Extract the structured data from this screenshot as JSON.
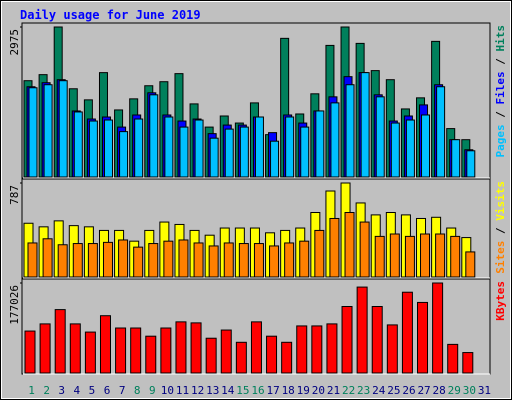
{
  "chart_data": [
    {
      "type": "bar",
      "title": "Daily usage for June 2019",
      "ylim": [
        0,
        2975
      ],
      "yticks": [
        2975
      ],
      "legend_separator": " / ",
      "series": [
        {
          "name": "Hits",
          "color": "#00805c",
          "values": [
            1910,
            2030,
            2975,
            1750,
            1530,
            2070,
            1330,
            1550,
            1810,
            1890,
            2050,
            1450,
            990,
            1210,
            1070,
            1470,
            840,
            2750,
            1250,
            1650,
            2610,
            2975,
            2650,
            2110,
            1930,
            1350,
            1570,
            2690,
            960,
            740,
            0
          ]
        },
        {
          "name": "Files",
          "color": "#0000ff",
          "values": [
            1790,
            1870,
            1930,
            1310,
            1150,
            1190,
            990,
            1230,
            1670,
            1230,
            1110,
            1150,
            860,
            1030,
            1030,
            1190,
            880,
            1230,
            1070,
            1310,
            1590,
            1990,
            2070,
            1630,
            1110,
            1210,
            1430,
            1830,
            740,
            540,
            0
          ]
        },
        {
          "name": "Pages",
          "color": "#00c0ff",
          "values": [
            1770,
            1830,
            1910,
            1290,
            1110,
            1130,
            900,
            1150,
            1630,
            1190,
            990,
            1130,
            770,
            950,
            990,
            1190,
            710,
            1190,
            990,
            1310,
            1470,
            1830,
            2070,
            1590,
            1070,
            1130,
            1230,
            1790,
            740,
            520,
            0
          ]
        }
      ]
    },
    {
      "type": "bar",
      "ylim": [
        0,
        787
      ],
      "yticks": [
        787
      ],
      "legend_separator": " / ",
      "series": [
        {
          "name": "Visits",
          "color": "#ffff00",
          "values": [
            450,
            420,
            470,
            430,
            420,
            390,
            390,
            300,
            390,
            460,
            440,
            390,
            350,
            410,
            410,
            410,
            370,
            390,
            410,
            540,
            720,
            787,
            620,
            520,
            540,
            520,
            490,
            500,
            410,
            330,
            0
          ]
        },
        {
          "name": "Sites",
          "color": "#ff8000",
          "values": [
            285,
            320,
            270,
            280,
            280,
            290,
            310,
            250,
            280,
            300,
            310,
            285,
            260,
            285,
            280,
            280,
            260,
            285,
            300,
            390,
            490,
            540,
            460,
            340,
            360,
            340,
            360,
            360,
            340,
            210,
            0
          ]
        }
      ]
    },
    {
      "type": "bar",
      "ylim": [
        0,
        177026
      ],
      "yticks": [
        177026
      ],
      "categories": [
        "1",
        "2",
        "3",
        "4",
        "5",
        "6",
        "7",
        "8",
        "9",
        "10",
        "11",
        "12",
        "13",
        "14",
        "15",
        "16",
        "17",
        "18",
        "19",
        "20",
        "21",
        "22",
        "23",
        "24",
        "25",
        "26",
        "27",
        "28",
        "29",
        "30",
        "31"
      ],
      "highlight_categories": [
        "1",
        "2",
        "8",
        "9",
        "15",
        "16",
        "22",
        "23",
        "29",
        "30"
      ],
      "highlight_color": "#00805c",
      "series": [
        {
          "name": "KBytes",
          "color": "#ff0000",
          "values": [
            82500,
            96600,
            124700,
            96600,
            80500,
            112700,
            88500,
            88500,
            72400,
            88500,
            100600,
            98600,
            68400,
            84500,
            60400,
            100600,
            72400,
            60400,
            92600,
            92600,
            96600,
            130800,
            169000,
            130800,
            94600,
            158900,
            138800,
            177026,
            56300,
            40200,
            0
          ]
        }
      ]
    }
  ]
}
